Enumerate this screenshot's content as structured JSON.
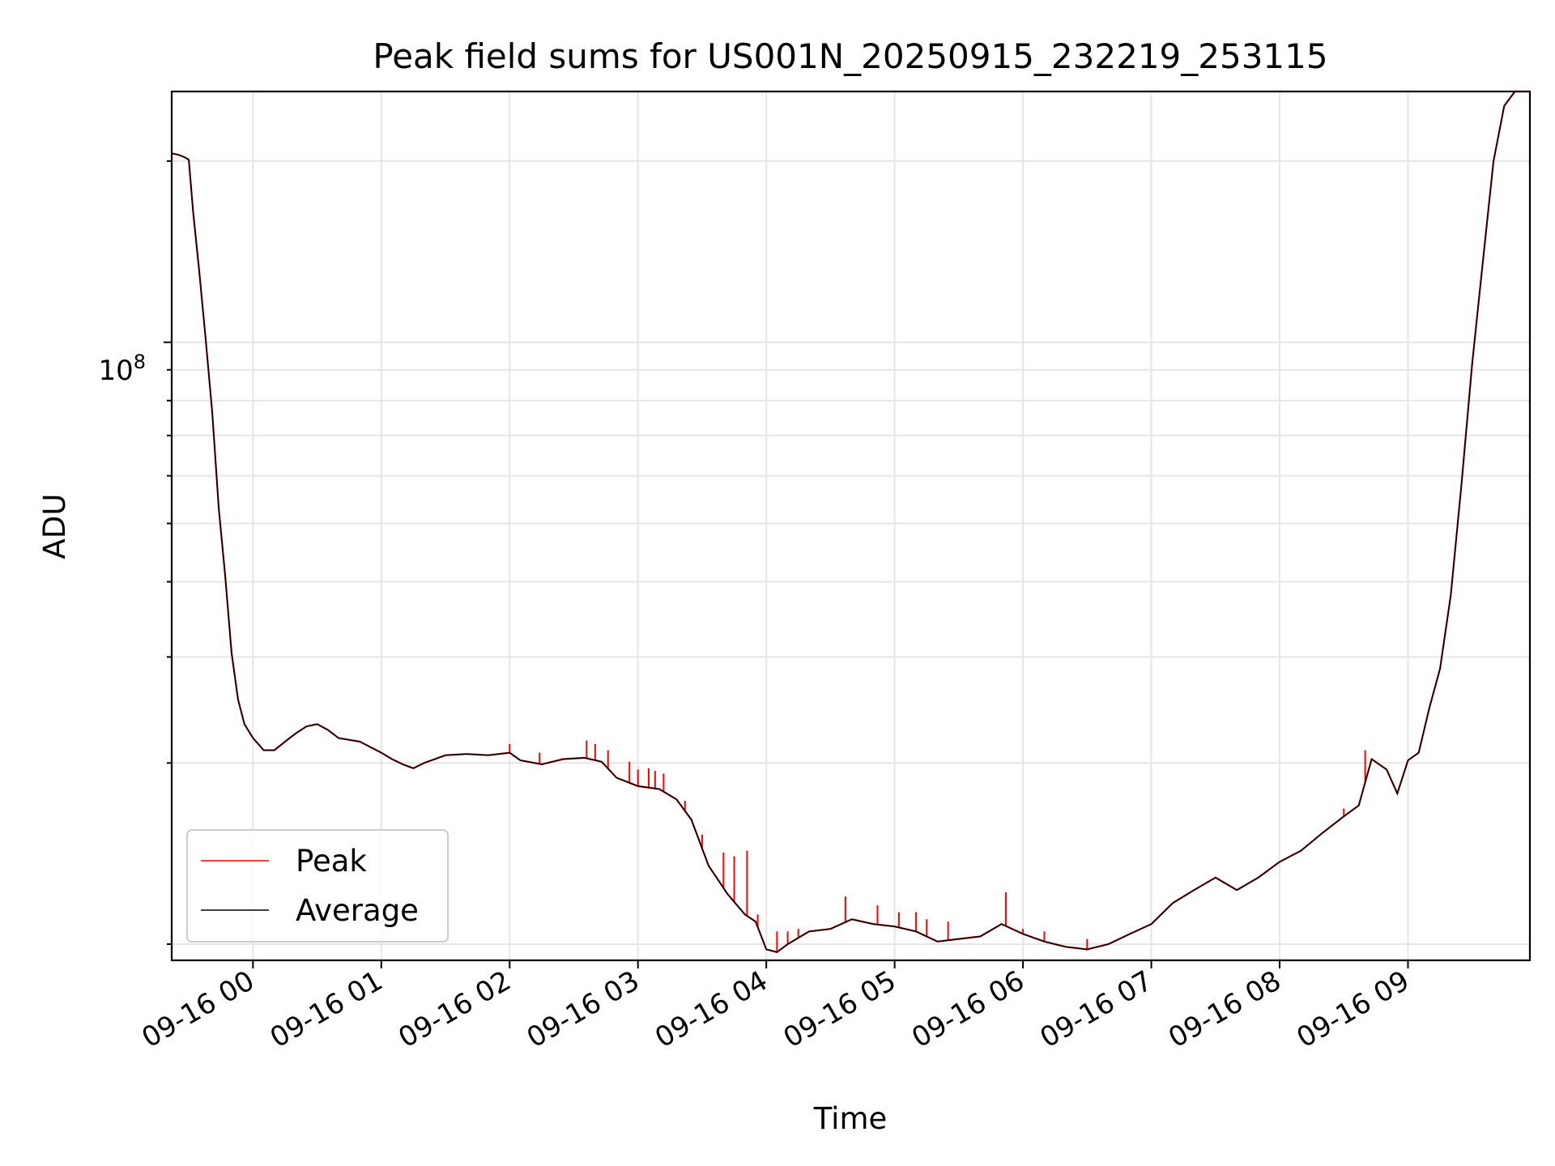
{
  "chart_data": {
    "type": "line",
    "title": "Peak field sums for US001N_20250915_232219_253115",
    "xlabel": "Time",
    "ylabel": "ADU",
    "yscale": "log",
    "ylim": [
      9400000,
      261000000
    ],
    "xlim": [
      "09-15 23:22",
      "09-16 09:57"
    ],
    "xticks": [
      "09-16 00",
      "09-16 01",
      "09-16 02",
      "09-16 03",
      "09-16 04",
      "09-16 05",
      "09-16 06",
      "09-16 07",
      "09-16 08",
      "09-16 09"
    ],
    "ytick_label_base": "10",
    "ytick_label_exp": "8",
    "grid": true,
    "legend_position": "lower-left",
    "series": [
      {
        "name": "Average",
        "color": "#000000",
        "points": [
          [
            "09-15 23:22",
            206000000
          ],
          [
            "09-15 23:25",
            205000000
          ],
          [
            "09-15 23:28",
            203000000
          ],
          [
            "09-15 23:30",
            201000000
          ],
          [
            "09-15 23:32",
            165000000
          ],
          [
            "09-15 23:35",
            130000000
          ],
          [
            "09-15 23:38",
            100000000
          ],
          [
            "09-15 23:41",
            76000000
          ],
          [
            "09-15 23:44",
            53000000
          ],
          [
            "09-15 23:47",
            41000000
          ],
          [
            "09-15 23:50",
            30500000
          ],
          [
            "09-15 23:53",
            25500000
          ],
          [
            "09-15 23:56",
            23200000
          ],
          [
            "09-16 00:00",
            22000000
          ],
          [
            "09-16 00:05",
            21000000
          ],
          [
            "09-16 00:10",
            21000000
          ],
          [
            "09-16 00:15",
            21700000
          ],
          [
            "09-16 00:20",
            22400000
          ],
          [
            "09-16 00:25",
            23000000
          ],
          [
            "09-16 00:30",
            23200000
          ],
          [
            "09-16 00:35",
            22700000
          ],
          [
            "09-16 00:40",
            22000000
          ],
          [
            "09-16 00:50",
            21700000
          ],
          [
            "09-16 01:00",
            20800000
          ],
          [
            "09-16 01:05",
            20300000
          ],
          [
            "09-16 01:10",
            19900000
          ],
          [
            "09-16 01:15",
            19600000
          ],
          [
            "09-16 01:20",
            20000000
          ],
          [
            "09-16 01:30",
            20600000
          ],
          [
            "09-16 01:40",
            20700000
          ],
          [
            "09-16 01:50",
            20600000
          ],
          [
            "09-16 02:00",
            20800000
          ],
          [
            "09-16 02:05",
            20200000
          ],
          [
            "09-16 02:15",
            19900000
          ],
          [
            "09-16 02:25",
            20300000
          ],
          [
            "09-16 02:35",
            20400000
          ],
          [
            "09-16 02:43",
            20100000
          ],
          [
            "09-16 02:50",
            18900000
          ],
          [
            "09-16 03:00",
            18300000
          ],
          [
            "09-16 03:10",
            18100000
          ],
          [
            "09-16 03:18",
            17400000
          ],
          [
            "09-16 03:25",
            16100000
          ],
          [
            "09-16 03:33",
            13500000
          ],
          [
            "09-16 03:42",
            12100000
          ],
          [
            "09-16 03:50",
            11200000
          ],
          [
            "09-16 03:55",
            10900000
          ],
          [
            "09-16 04:00",
            9800000
          ],
          [
            "09-16 04:05",
            9700000
          ],
          [
            "09-16 04:10",
            10000000
          ],
          [
            "09-16 04:20",
            10500000
          ],
          [
            "09-16 04:30",
            10600000
          ],
          [
            "09-16 04:40",
            11000000
          ],
          [
            "09-16 04:50",
            10800000
          ],
          [
            "09-16 05:00",
            10700000
          ],
          [
            "09-16 05:10",
            10500000
          ],
          [
            "09-16 05:20",
            10100000
          ],
          [
            "09-16 05:30",
            10200000
          ],
          [
            "09-16 05:40",
            10300000
          ],
          [
            "09-16 05:50",
            10800000
          ],
          [
            "09-16 06:00",
            10400000
          ],
          [
            "09-16 06:10",
            10100000
          ],
          [
            "09-16 06:20",
            9900000
          ],
          [
            "09-16 06:30",
            9800000
          ],
          [
            "09-16 06:40",
            10000000
          ],
          [
            "09-16 06:50",
            10400000
          ],
          [
            "09-16 07:00",
            10800000
          ],
          [
            "09-16 07:10",
            11700000
          ],
          [
            "09-16 07:20",
            12300000
          ],
          [
            "09-16 07:30",
            12900000
          ],
          [
            "09-16 07:40",
            12300000
          ],
          [
            "09-16 07:50",
            12900000
          ],
          [
            "09-16 08:00",
            13700000
          ],
          [
            "09-16 08:10",
            14300000
          ],
          [
            "09-16 08:20",
            15300000
          ],
          [
            "09-16 08:30",
            16300000
          ],
          [
            "09-16 08:37",
            17000000
          ],
          [
            "09-16 08:43",
            20300000
          ],
          [
            "09-16 08:50",
            19500000
          ],
          [
            "09-16 08:55",
            17800000
          ],
          [
            "09-16 09:00",
            20200000
          ],
          [
            "09-16 09:05",
            20800000
          ],
          [
            "09-16 09:10",
            24700000
          ],
          [
            "09-16 09:15",
            28700000
          ],
          [
            "09-16 09:20",
            38000000
          ],
          [
            "09-16 09:25",
            58000000
          ],
          [
            "09-16 09:30",
            92000000
          ],
          [
            "09-16 09:35",
            136000000
          ],
          [
            "09-16 09:40",
            200000000
          ],
          [
            "09-16 09:45",
            247000000
          ],
          [
            "09-16 09:50",
            261000000
          ],
          [
            "09-16 09:57",
            261000000
          ]
        ]
      },
      {
        "name": "Peak",
        "color": "#ff0000",
        "spikes": [
          [
            "09-16 02:00",
            21500000
          ],
          [
            "09-16 02:14",
            20800000
          ],
          [
            "09-16 02:36",
            21800000
          ],
          [
            "09-16 02:40",
            21500000
          ],
          [
            "09-16 02:46",
            21000000
          ],
          [
            "09-16 02:56",
            20100000
          ],
          [
            "09-16 03:00",
            19500000
          ],
          [
            "09-16 03:05",
            19600000
          ],
          [
            "09-16 03:08",
            19400000
          ],
          [
            "09-16 03:12",
            19200000
          ],
          [
            "09-16 03:22",
            17300000
          ],
          [
            "09-16 03:30",
            15200000
          ],
          [
            "09-16 03:40",
            14200000
          ],
          [
            "09-16 03:45",
            14000000
          ],
          [
            "09-16 03:51",
            14300000
          ],
          [
            "09-16 03:56",
            11200000
          ],
          [
            "09-16 04:05",
            10500000
          ],
          [
            "09-16 04:10",
            10500000
          ],
          [
            "09-16 04:15",
            10600000
          ],
          [
            "09-16 04:37",
            12000000
          ],
          [
            "09-16 04:52",
            11600000
          ],
          [
            "09-16 05:02",
            11300000
          ],
          [
            "09-16 05:10",
            11300000
          ],
          [
            "09-16 05:15",
            11000000
          ],
          [
            "09-16 05:25",
            10900000
          ],
          [
            "09-16 05:52",
            12200000
          ],
          [
            "09-16 06:00",
            10600000
          ],
          [
            "09-16 06:10",
            10500000
          ],
          [
            "09-16 06:30",
            10200000
          ],
          [
            "09-16 08:30",
            16800000
          ],
          [
            "09-16 08:40",
            21000000
          ]
        ]
      }
    ]
  }
}
